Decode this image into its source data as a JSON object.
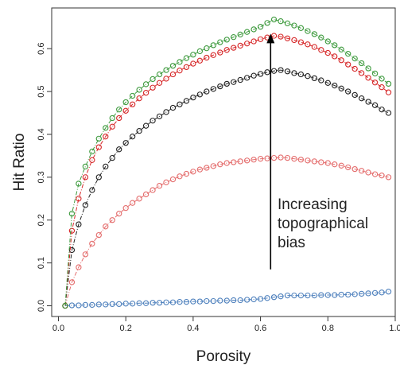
{
  "chart_data": {
    "type": "scatter",
    "xlabel": "Porosity",
    "ylabel": "Hit Ratio",
    "xlim": [
      -0.02,
      1.0
    ],
    "ylim": [
      -0.025,
      0.695
    ],
    "xticks": [
      0.0,
      0.2,
      0.4,
      0.6,
      0.8,
      1.0
    ],
    "xtick_labels": [
      "0.0",
      "0.2",
      "0.4",
      "0.6",
      "0.8",
      "1.0"
    ],
    "yticks": [
      0.0,
      0.1,
      0.2,
      0.3,
      0.4,
      0.5,
      0.6
    ],
    "ytick_labels": [
      "0.0",
      "0.1",
      "0.2",
      "0.3",
      "0.4",
      "0.5",
      "0.6"
    ],
    "grid": false,
    "marker": "open-circle",
    "annotation": {
      "lines": [
        "Increasing",
        "topographical",
        "bias"
      ],
      "arrow_from": [
        0.63,
        0.085
      ],
      "arrow_to": [
        0.63,
        0.635
      ]
    },
    "series": [
      {
        "color": "#4f81bd",
        "x": [
          0.02,
          0.04,
          0.06,
          0.08,
          0.1,
          0.12,
          0.14,
          0.16,
          0.18,
          0.2,
          0.22,
          0.24,
          0.26,
          0.28,
          0.3,
          0.32,
          0.34,
          0.36,
          0.38,
          0.4,
          0.42,
          0.44,
          0.46,
          0.48,
          0.5,
          0.52,
          0.54,
          0.56,
          0.58,
          0.6,
          0.62,
          0.64,
          0.66,
          0.68,
          0.7,
          0.72,
          0.74,
          0.76,
          0.78,
          0.8,
          0.82,
          0.84,
          0.86,
          0.88,
          0.9,
          0.92,
          0.94,
          0.96,
          0.98
        ],
        "y": [
          0.0,
          0.001,
          0.001,
          0.002,
          0.002,
          0.003,
          0.003,
          0.004,
          0.004,
          0.005,
          0.005,
          0.006,
          0.006,
          0.007,
          0.007,
          0.008,
          0.008,
          0.009,
          0.009,
          0.01,
          0.01,
          0.011,
          0.011,
          0.012,
          0.012,
          0.013,
          0.013,
          0.014,
          0.015,
          0.016,
          0.018,
          0.02,
          0.022,
          0.024,
          0.024,
          0.024,
          0.024,
          0.024,
          0.025,
          0.025,
          0.025,
          0.026,
          0.026,
          0.027,
          0.028,
          0.029,
          0.03,
          0.031,
          0.033
        ]
      },
      {
        "color": "#e46c6c",
        "x": [
          0.02,
          0.04,
          0.06,
          0.08,
          0.1,
          0.12,
          0.14,
          0.16,
          0.18,
          0.2,
          0.22,
          0.24,
          0.26,
          0.28,
          0.3,
          0.32,
          0.34,
          0.36,
          0.38,
          0.4,
          0.42,
          0.44,
          0.46,
          0.48,
          0.5,
          0.52,
          0.54,
          0.56,
          0.58,
          0.6,
          0.62,
          0.64,
          0.66,
          0.68,
          0.7,
          0.72,
          0.74,
          0.76,
          0.78,
          0.8,
          0.82,
          0.84,
          0.86,
          0.88,
          0.9,
          0.92,
          0.94,
          0.96,
          0.98
        ],
        "y": [
          0.0,
          0.055,
          0.09,
          0.12,
          0.145,
          0.165,
          0.185,
          0.2,
          0.215,
          0.228,
          0.24,
          0.25,
          0.26,
          0.27,
          0.28,
          0.288,
          0.295,
          0.302,
          0.308,
          0.313,
          0.318,
          0.322,
          0.326,
          0.33,
          0.333,
          0.335,
          0.337,
          0.339,
          0.341,
          0.343,
          0.344,
          0.345,
          0.346,
          0.345,
          0.343,
          0.341,
          0.339,
          0.337,
          0.335,
          0.333,
          0.33,
          0.327,
          0.323,
          0.319,
          0.315,
          0.311,
          0.307,
          0.304,
          0.3
        ]
      },
      {
        "color": "#222222",
        "x": [
          0.02,
          0.04,
          0.06,
          0.08,
          0.1,
          0.12,
          0.14,
          0.16,
          0.18,
          0.2,
          0.22,
          0.24,
          0.26,
          0.28,
          0.3,
          0.32,
          0.34,
          0.36,
          0.38,
          0.4,
          0.42,
          0.44,
          0.46,
          0.48,
          0.5,
          0.52,
          0.54,
          0.56,
          0.58,
          0.6,
          0.62,
          0.64,
          0.66,
          0.68,
          0.7,
          0.72,
          0.74,
          0.76,
          0.78,
          0.8,
          0.82,
          0.84,
          0.86,
          0.88,
          0.9,
          0.92,
          0.94,
          0.96,
          0.98
        ],
        "y": [
          0.0,
          0.13,
          0.19,
          0.235,
          0.27,
          0.3,
          0.325,
          0.345,
          0.365,
          0.38,
          0.395,
          0.408,
          0.42,
          0.432,
          0.442,
          0.452,
          0.462,
          0.47,
          0.478,
          0.486,
          0.493,
          0.5,
          0.506,
          0.512,
          0.518,
          0.522,
          0.527,
          0.532,
          0.537,
          0.541,
          0.545,
          0.548,
          0.55,
          0.547,
          0.543,
          0.54,
          0.536,
          0.531,
          0.526,
          0.52,
          0.514,
          0.507,
          0.5,
          0.492,
          0.484,
          0.476,
          0.468,
          0.458,
          0.45
        ]
      },
      {
        "color": "#d62728",
        "x": [
          0.02,
          0.04,
          0.06,
          0.08,
          0.1,
          0.12,
          0.14,
          0.16,
          0.18,
          0.2,
          0.22,
          0.24,
          0.26,
          0.28,
          0.3,
          0.32,
          0.34,
          0.36,
          0.38,
          0.4,
          0.42,
          0.44,
          0.46,
          0.48,
          0.5,
          0.52,
          0.54,
          0.56,
          0.58,
          0.6,
          0.62,
          0.64,
          0.66,
          0.68,
          0.7,
          0.72,
          0.74,
          0.76,
          0.78,
          0.8,
          0.82,
          0.84,
          0.86,
          0.88,
          0.9,
          0.92,
          0.94,
          0.96,
          0.98
        ],
        "y": [
          0.0,
          0.175,
          0.25,
          0.3,
          0.34,
          0.37,
          0.395,
          0.418,
          0.438,
          0.455,
          0.47,
          0.484,
          0.497,
          0.509,
          0.52,
          0.53,
          0.54,
          0.549,
          0.557,
          0.565,
          0.572,
          0.579,
          0.585,
          0.591,
          0.597,
          0.602,
          0.607,
          0.612,
          0.617,
          0.622,
          0.626,
          0.63,
          0.628,
          0.624,
          0.62,
          0.615,
          0.61,
          0.604,
          0.597,
          0.59,
          0.582,
          0.573,
          0.563,
          0.553,
          0.543,
          0.532,
          0.521,
          0.51,
          0.498
        ]
      },
      {
        "color": "#3d9a3d",
        "x": [
          0.02,
          0.04,
          0.06,
          0.08,
          0.1,
          0.12,
          0.14,
          0.16,
          0.18,
          0.2,
          0.22,
          0.24,
          0.26,
          0.28,
          0.3,
          0.32,
          0.34,
          0.36,
          0.38,
          0.4,
          0.42,
          0.44,
          0.46,
          0.48,
          0.5,
          0.52,
          0.54,
          0.56,
          0.58,
          0.6,
          0.62,
          0.64,
          0.66,
          0.68,
          0.7,
          0.72,
          0.74,
          0.76,
          0.78,
          0.8,
          0.82,
          0.84,
          0.86,
          0.88,
          0.9,
          0.92,
          0.94,
          0.96,
          0.98
        ],
        "y": [
          0.0,
          0.215,
          0.285,
          0.325,
          0.36,
          0.39,
          0.415,
          0.438,
          0.458,
          0.475,
          0.49,
          0.504,
          0.517,
          0.529,
          0.54,
          0.55,
          0.56,
          0.569,
          0.578,
          0.586,
          0.594,
          0.601,
          0.608,
          0.615,
          0.621,
          0.627,
          0.633,
          0.639,
          0.645,
          0.651,
          0.66,
          0.668,
          0.664,
          0.659,
          0.654,
          0.648,
          0.641,
          0.634,
          0.626,
          0.617,
          0.608,
          0.598,
          0.588,
          0.577,
          0.566,
          0.554,
          0.542,
          0.53,
          0.518
        ]
      }
    ]
  }
}
